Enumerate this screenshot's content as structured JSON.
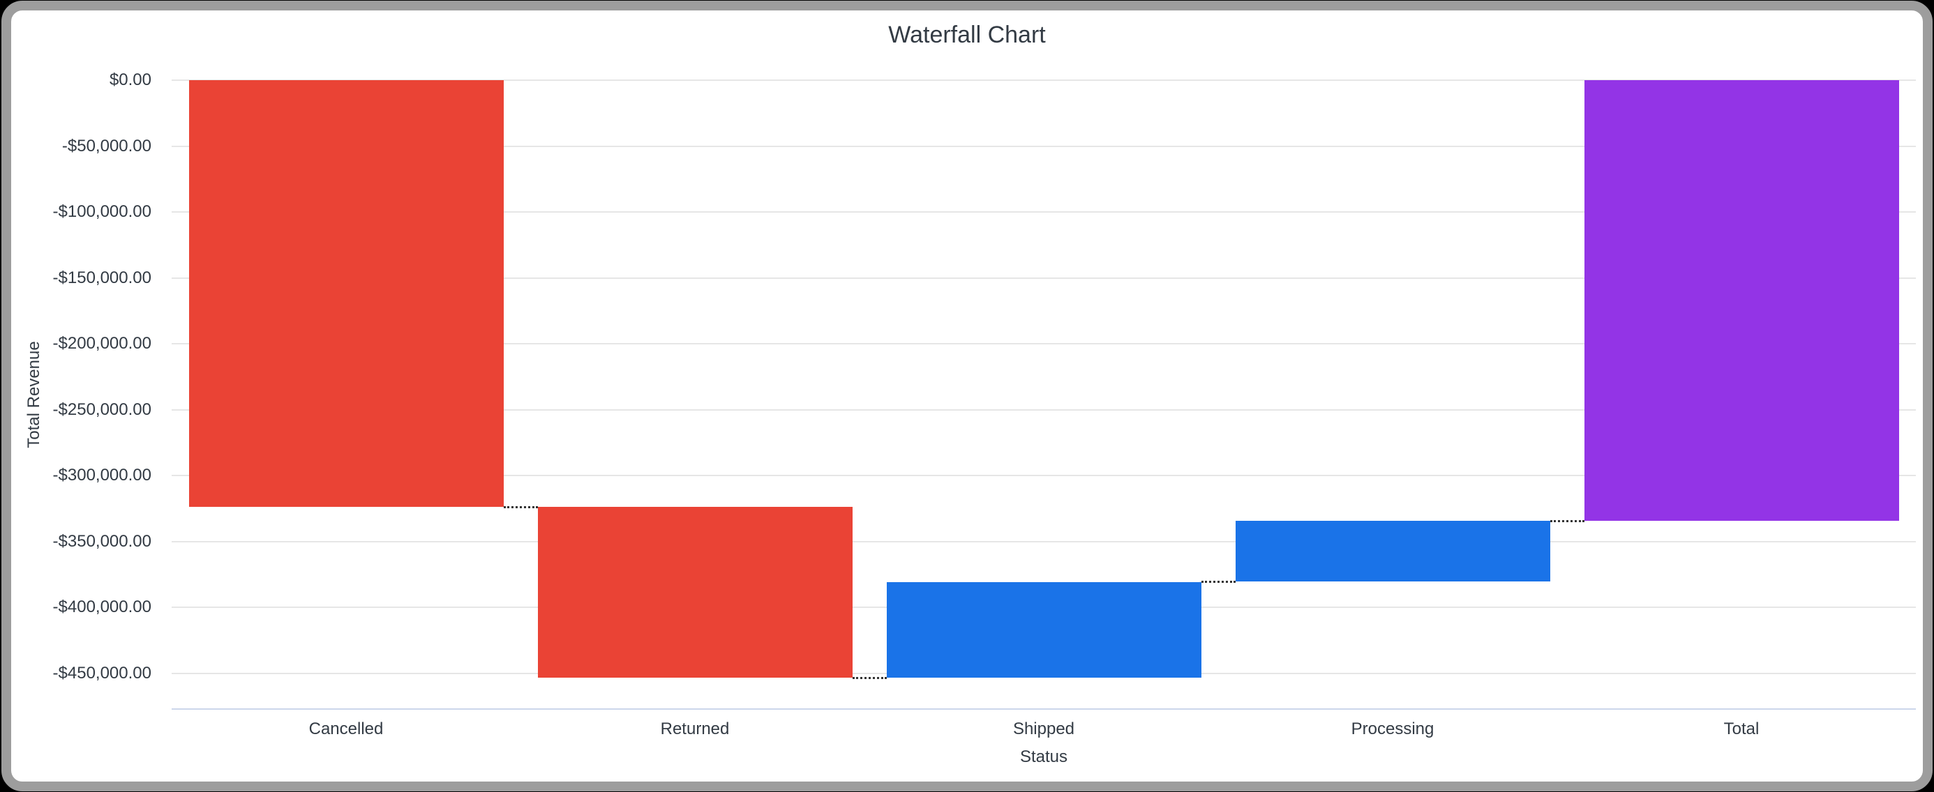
{
  "chart_data": {
    "type": "bar",
    "subtype": "waterfall",
    "title": "Waterfall Chart",
    "xlabel": "Status",
    "ylabel": "Total Revenue",
    "categories": [
      "Cancelled",
      "Returned",
      "Shipped",
      "Processing",
      "Total"
    ],
    "points": [
      {
        "label": "Cancelled",
        "delta": -324000,
        "kind": "decrease",
        "cumulative_end": -324000
      },
      {
        "label": "Returned",
        "delta": -129500,
        "kind": "decrease",
        "cumulative_end": -453500
      },
      {
        "label": "Shipped",
        "delta": 72800,
        "kind": "increase",
        "cumulative_end": -380700
      },
      {
        "label": "Processing",
        "delta": 46200,
        "kind": "increase",
        "cumulative_end": -334500
      },
      {
        "label": "Total",
        "delta": -334500,
        "kind": "total",
        "cumulative_end": -334500
      }
    ],
    "total": -334500,
    "y_ticks": [
      {
        "value": 0,
        "label": "$0.00"
      },
      {
        "value": -50000,
        "label": "-$50,000.00"
      },
      {
        "value": -100000,
        "label": "-$100,000.00"
      },
      {
        "value": -150000,
        "label": "-$150,000.00"
      },
      {
        "value": -200000,
        "label": "-$200,000.00"
      },
      {
        "value": -250000,
        "label": "-$250,000.00"
      },
      {
        "value": -300000,
        "label": "-$300,000.00"
      },
      {
        "value": -350000,
        "label": "-$350,000.00"
      },
      {
        "value": -400000,
        "label": "-$400,000.00"
      },
      {
        "value": -450000,
        "label": "-$450,000.00"
      }
    ],
    "ylim": [
      -477000,
      0
    ],
    "grid": true,
    "legend": "none",
    "colors": {
      "decrease": "#EA4335",
      "increase": "#1A73E8",
      "total": "#9334E6"
    },
    "connector_color": "#333333",
    "gridline_color": "#E6E6E6",
    "axis_line_color": "#CCD6EB",
    "text_color": "#333B44",
    "frame_border_color": "#9D9D9D",
    "background_color": "#FFFFFF"
  }
}
